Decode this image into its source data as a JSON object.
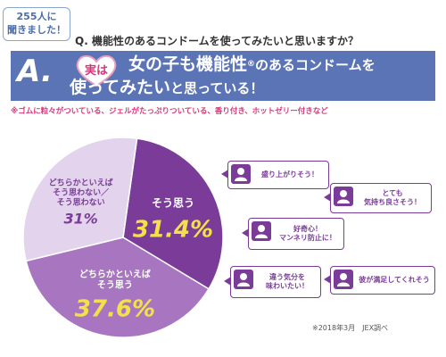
{
  "header": {
    "badge_line1": "255人に",
    "badge_line2": "聞きました！",
    "question": "Q. 機能性のあるコンドームを使ってみたいと思いますか？",
    "answer_letter": "A.",
    "heart_label": "実は",
    "banner_line1_a": "女の子も機能性",
    "banner_line1_reg": "®",
    "banner_line1_b": "のあるコンドームを",
    "banner_line2_a": "使ってみたい",
    "banner_line2_b": "と思っている！",
    "note": "※ゴムに粒々がついている、ジェルがたっぷりついている、香り付き、ホットゼリー付きなど"
  },
  "chart_data": {
    "type": "pie",
    "slices": [
      {
        "name_lines": [
          "そう思う"
        ],
        "value": 31.4,
        "value_label": "31.4%",
        "color": "#7a3c98"
      },
      {
        "name_lines": [
          "どちらかといえば",
          "そう思う"
        ],
        "value": 37.6,
        "value_label": "37.6%",
        "color": "#a876c0"
      },
      {
        "name_lines": [
          "どちらかといえば",
          "そう思わない／",
          "そう思わない"
        ],
        "value": 31,
        "value_label": "31%",
        "color": "#e3d3ec"
      }
    ]
  },
  "comments": [
    {
      "lines": [
        "盛り上がりそう！"
      ]
    },
    {
      "lines": [
        "とても",
        "気持ち良さそう！"
      ]
    },
    {
      "lines": [
        "好奇心！",
        "マンネリ防止に！"
      ]
    },
    {
      "lines": [
        "違う気分を",
        "味わいたい！"
      ]
    },
    {
      "lines": [
        "彼が満足してくれそう"
      ]
    }
  ],
  "source": "※2018年3月　JEX調べ",
  "colors": {
    "banner": "#5b74b5",
    "accent_pink": "#d6387a",
    "purple_dark": "#7a3c98",
    "purple_mid": "#a876c0",
    "purple_light": "#e3d3ec"
  }
}
